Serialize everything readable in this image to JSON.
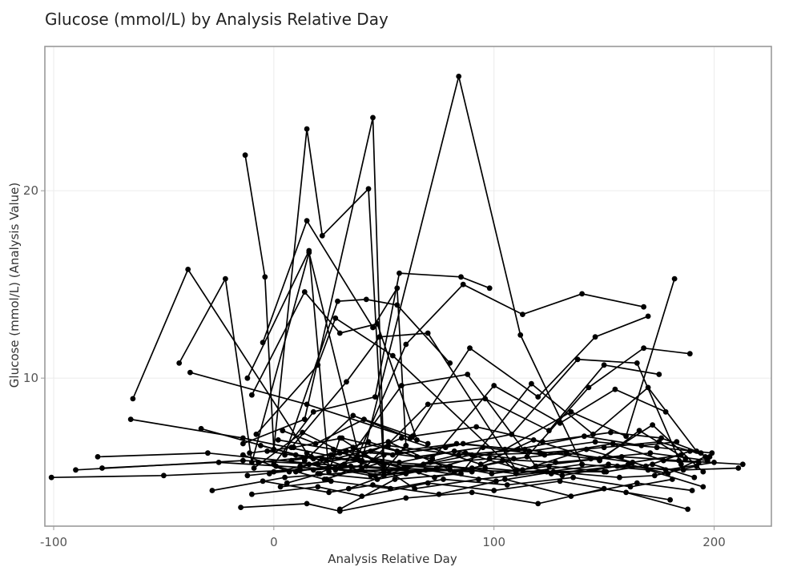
{
  "chart_data": {
    "type": "line",
    "title": "Glucose (mmol/L) by Analysis Relative Day",
    "xlabel": "Analysis Relative Day",
    "ylabel": "Glucose (mmol/L) (Analysis Value)",
    "xlim": [
      -104,
      226
    ],
    "ylim": [
      2.1,
      27.7
    ],
    "x_ticks": [
      -100,
      0,
      100,
      200
    ],
    "x_tick_labels": [
      "-100",
      "0",
      "100",
      "200"
    ],
    "y_ticks": [
      10,
      20
    ],
    "y_tick_labels": [
      "10",
      "20"
    ],
    "grid": true,
    "legend": "none",
    "line_color": "#000000",
    "point_color": "#000000",
    "series": [
      {
        "x": [
          -101,
          -50,
          30
        ],
        "y": [
          4.7,
          4.8,
          5.2
        ]
      },
      {
        "x": [
          -90,
          -14,
          90
        ],
        "y": [
          5.1,
          5.6,
          5.0
        ]
      },
      {
        "x": [
          -80,
          -30,
          20
        ],
        "y": [
          5.8,
          6.0,
          5.4
        ]
      },
      {
        "x": [
          -78,
          -25,
          60
        ],
        "y": [
          5.2,
          5.5,
          4.9
        ]
      },
      {
        "x": [
          -65,
          -14,
          40
        ],
        "y": [
          7.8,
          6.8,
          5.5
        ]
      },
      {
        "x": [
          -64,
          -39,
          15,
          28,
          150
        ],
        "y": [
          8.9,
          15.8,
          6.0,
          5.1,
          5.0
        ]
      },
      {
        "x": [
          -43,
          -22,
          -10,
          16,
          40
        ],
        "y": [
          10.8,
          15.3,
          5.5,
          16.7,
          5.2
        ]
      },
      {
        "x": [
          -38,
          15,
          70
        ],
        "y": [
          10.3,
          8.6,
          6.5
        ]
      },
      {
        "x": [
          -33,
          10,
          80
        ],
        "y": [
          7.3,
          5.9,
          5.1
        ]
      },
      {
        "x": [
          -28,
          5,
          60
        ],
        "y": [
          4.0,
          4.7,
          5.2
        ]
      },
      {
        "x": [
          -13,
          -4,
          0,
          15,
          22,
          43,
          50,
          60
        ],
        "y": [
          21.9,
          15.4,
          6.2,
          23.3,
          17.6,
          20.1,
          5.0,
          6.4
        ]
      },
      {
        "x": [
          -12,
          16,
          25,
          30,
          50
        ],
        "y": [
          10.0,
          16.8,
          5.0,
          6.8,
          5.3
        ]
      },
      {
        "x": [
          -14,
          14,
          45,
          50,
          90
        ],
        "y": [
          6.5,
          7.8,
          23.9,
          5.4,
          5.2
        ]
      },
      {
        "x": [
          -5,
          15,
          45,
          56,
          60
        ],
        "y": [
          11.9,
          18.4,
          12.7,
          14.8,
          6.4
        ]
      },
      {
        "x": [
          -10,
          14,
          30,
          47,
          65
        ],
        "y": [
          9.1,
          14.6,
          12.4,
          12.9,
          6.7
        ]
      },
      {
        "x": [
          -8,
          20,
          28,
          54,
          110
        ],
        "y": [
          7.0,
          10.7,
          13.2,
          11.2,
          5.0
        ]
      },
      {
        "x": [
          0,
          18,
          46,
          57,
          85,
          98
        ],
        "y": [
          5.4,
          8.2,
          9.0,
          15.6,
          15.4,
          14.8
        ]
      },
      {
        "x": [
          5,
          29,
          42,
          56,
          80
        ],
        "y": [
          5.9,
          14.1,
          14.2,
          13.9,
          10.8
        ]
      },
      {
        "x": [
          8,
          33,
          48,
          70,
          110
        ],
        "y": [
          6.3,
          9.8,
          12.2,
          12.4,
          5.1
        ]
      },
      {
        "x": [
          10,
          40,
          84,
          112,
          140
        ],
        "y": [
          5.0,
          5.6,
          26.1,
          12.3,
          5.4
        ]
      },
      {
        "x": [
          12,
          38,
          60,
          86,
          113,
          140,
          168
        ],
        "y": [
          5.3,
          5.8,
          11.8,
          15.0,
          13.4,
          14.5,
          13.8
        ]
      },
      {
        "x": [
          14,
          36,
          62,
          89,
          120,
          146,
          170
        ],
        "y": [
          5.6,
          8.0,
          6.8,
          11.6,
          9.0,
          12.2,
          13.3
        ]
      },
      {
        "x": [
          18,
          42,
          70,
          96,
          125,
          150,
          175
        ],
        "y": [
          5.1,
          5.3,
          8.6,
          8.9,
          7.2,
          10.7,
          10.2
        ]
      },
      {
        "x": [
          20,
          44,
          72,
          100,
          130,
          155,
          178
        ],
        "y": [
          4.9,
          6.1,
          5.7,
          9.6,
          7.6,
          9.4,
          8.2
        ]
      },
      {
        "x": [
          22,
          46,
          74,
          105,
          135,
          160,
          182
        ],
        "y": [
          5.7,
          4.8,
          5.2,
          6.2,
          8.2,
          6.9,
          15.3
        ]
      },
      {
        "x": [
          24,
          50,
          78,
          108,
          138,
          165,
          185
        ],
        "y": [
          4.6,
          5.9,
          6.3,
          7.0,
          11.0,
          10.8,
          5.4
        ]
      },
      {
        "x": [
          26,
          52,
          82,
          115,
          143,
          168,
          189
        ],
        "y": [
          5.9,
          6.6,
          5.0,
          5.8,
          9.5,
          11.6,
          11.3
        ]
      },
      {
        "x": [
          30,
          55,
          85,
          117,
          145,
          170,
          192
        ],
        "y": [
          3.0,
          4.6,
          4.9,
          9.7,
          7.0,
          9.5,
          6.1
        ]
      },
      {
        "x": [
          32,
          58,
          88,
          119,
          148,
          172,
          195
        ],
        "y": [
          5.4,
          9.6,
          10.2,
          5.3,
          5.7,
          7.5,
          5.0
        ]
      },
      {
        "x": [
          34,
          60,
          90,
          121,
          150,
          175,
          198
        ],
        "y": [
          4.1,
          5.2,
          5.9,
          6.0,
          6.3,
          6.6,
          5.8
        ]
      },
      {
        "x": [
          36,
          64,
          93,
          124,
          152,
          178,
          200
        ],
        "y": [
          6.3,
          4.1,
          4.6,
          5.0,
          5.4,
          5.1,
          5.5
        ]
      },
      {
        "x": [
          -15,
          15,
          30,
          60,
          90,
          120,
          150,
          180
        ],
        "y": [
          3.1,
          3.3,
          2.9,
          3.6,
          3.9,
          3.3,
          4.1,
          3.5
        ]
      },
      {
        "x": [
          -10,
          20,
          40,
          70,
          100,
          130,
          160,
          188
        ],
        "y": [
          3.8,
          4.2,
          3.7,
          4.4,
          4.0,
          4.5,
          3.9,
          3.0
        ]
      },
      {
        "x": [
          -5,
          25,
          45,
          75,
          105,
          135,
          165,
          190
        ],
        "y": [
          4.5,
          3.9,
          4.3,
          3.8,
          4.6,
          3.7,
          4.4,
          4.0
        ]
      },
      {
        "x": [
          0,
          28,
          50,
          80,
          110,
          140,
          170,
          195
        ],
        "y": [
          5.0,
          5.2,
          4.8,
          5.3,
          4.9,
          5.4,
          5.1,
          4.2
        ]
      },
      {
        "x": [
          -3,
          24,
          52,
          84,
          114,
          144,
          171,
          197
        ],
        "y": [
          6.1,
          5.6,
          6.4,
          5.9,
          6.2,
          5.7,
          6.0,
          5.6
        ]
      },
      {
        "x": [
          2,
          27,
          54,
          86,
          116,
          146,
          174,
          199
        ],
        "y": [
          6.7,
          6.2,
          5.9,
          6.5,
          6.1,
          6.6,
          6.3,
          6.0
        ]
      },
      {
        "x": [
          -12,
          12,
          35,
          66,
          96,
          126,
          156,
          186,
          211
        ],
        "y": [
          4.8,
          5.1,
          5.3,
          5.0,
          5.2,
          4.9,
          5.3,
          5.1,
          5.2
        ]
      },
      {
        "x": [
          -7,
          17,
          39,
          68,
          98,
          128,
          158,
          184,
          213
        ],
        "y": [
          5.5,
          5.8,
          5.6,
          5.4,
          5.7,
          5.5,
          5.8,
          5.6,
          5.4
        ]
      },
      {
        "x": [
          4,
          19,
          41,
          63,
          92,
          122,
          153,
          176,
          194
        ],
        "y": [
          7.2,
          6.5,
          7.8,
          6.9,
          7.4,
          6.6,
          7.1,
          6.8,
          6.0
        ]
      },
      {
        "x": [
          -9,
          13,
          37,
          58,
          94,
          118,
          148,
          166,
          187
        ],
        "y": [
          5.2,
          7.1,
          5.7,
          6.8,
          5.4,
          6.7,
          5.6,
          7.2,
          5.7
        ]
      },
      {
        "x": [
          6,
          21,
          47,
          69,
          101,
          127,
          157,
          173,
          192
        ],
        "y": [
          4.4,
          4.9,
          4.6,
          5.1,
          4.5,
          5.0,
          4.7,
          4.8,
          5.3
        ]
      },
      {
        "x": [
          -11,
          9,
          31,
          56,
          83,
          111,
          141,
          167,
          183
        ],
        "y": [
          6.0,
          6.3,
          6.8,
          6.1,
          6.5,
          6.2,
          6.9,
          6.4,
          6.6
        ]
      },
      {
        "x": [
          1,
          23,
          49,
          73,
          104,
          131,
          161,
          179,
          196
        ],
        "y": [
          5.3,
          4.6,
          5.5,
          4.7,
          5.6,
          4.8,
          5.4,
          4.9,
          5.8
        ]
      },
      {
        "x": [
          -14,
          7,
          33,
          59,
          87,
          113,
          142,
          169,
          189
        ],
        "y": [
          5.9,
          5.0,
          6.1,
          5.2,
          6.0,
          5.1,
          6.2,
          5.3,
          6.1
        ]
      },
      {
        "x": [
          3,
          26,
          53,
          77,
          106,
          136,
          162,
          181
        ],
        "y": [
          4.2,
          4.5,
          4.1,
          4.6,
          4.3,
          4.7,
          4.2,
          4.6
        ]
      },
      {
        "x": [
          -6,
          18,
          43,
          65,
          95,
          123,
          154,
          177,
          193
        ],
        "y": [
          6.4,
          5.7,
          6.6,
          5.8,
          6.3,
          5.9,
          6.5,
          5.6,
          5.5
        ]
      },
      {
        "x": [
          8,
          30,
          57,
          82,
          109,
          133,
          163,
          185
        ],
        "y": [
          5.6,
          6.0,
          5.5,
          6.1,
          5.7,
          6.0,
          5.5,
          5.9
        ]
      },
      {
        "x": [
          -2,
          16,
          44,
          71,
          99,
          125,
          151,
          172,
          191
        ],
        "y": [
          4.9,
          5.4,
          4.8,
          5.5,
          4.9,
          5.3,
          5.0,
          5.4,
          4.7
        ]
      }
    ]
  }
}
